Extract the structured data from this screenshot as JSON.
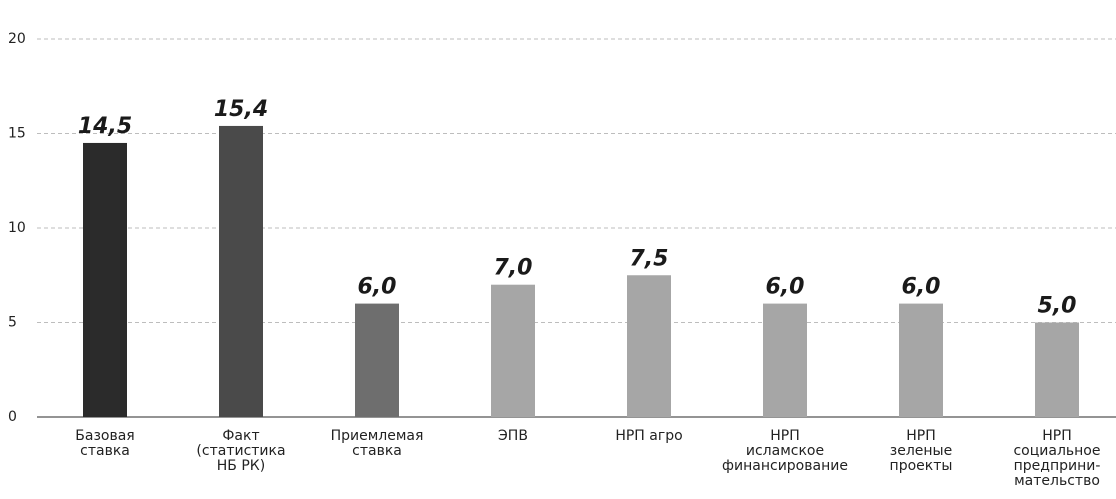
{
  "chart_data": {
    "type": "bar",
    "categories": [
      [
        "Базовая",
        "ставка"
      ],
      [
        "Факт",
        "(статистика",
        "НБ РК)"
      ],
      [
        "Приемлемая",
        "ставка"
      ],
      [
        "ЭПВ"
      ],
      [
        "НРП агро"
      ],
      [
        "НРП",
        "исламское",
        "финансирование"
      ],
      [
        "НРП",
        "зеленые",
        "проекты"
      ],
      [
        "НРП",
        "социальное",
        "предприни-",
        "мательство"
      ]
    ],
    "values": [
      14.5,
      15.4,
      6.0,
      7.0,
      7.5,
      6.0,
      6.0,
      5.0
    ],
    "value_labels": [
      "14,5",
      "15,4",
      "6,0",
      "7,0",
      "7,5",
      "6,0",
      "6,0",
      "5,0"
    ],
    "colors": [
      "#2b2b2b",
      "#4a4a4a",
      "#6e6e6e",
      "#a6a6a6",
      "#a6a6a6",
      "#a6a6a6",
      "#a6a6a6",
      "#a6a6a6"
    ],
    "ylim": [
      0,
      20
    ],
    "yticks": [
      0,
      5,
      10,
      15,
      20
    ],
    "grid": true
  }
}
